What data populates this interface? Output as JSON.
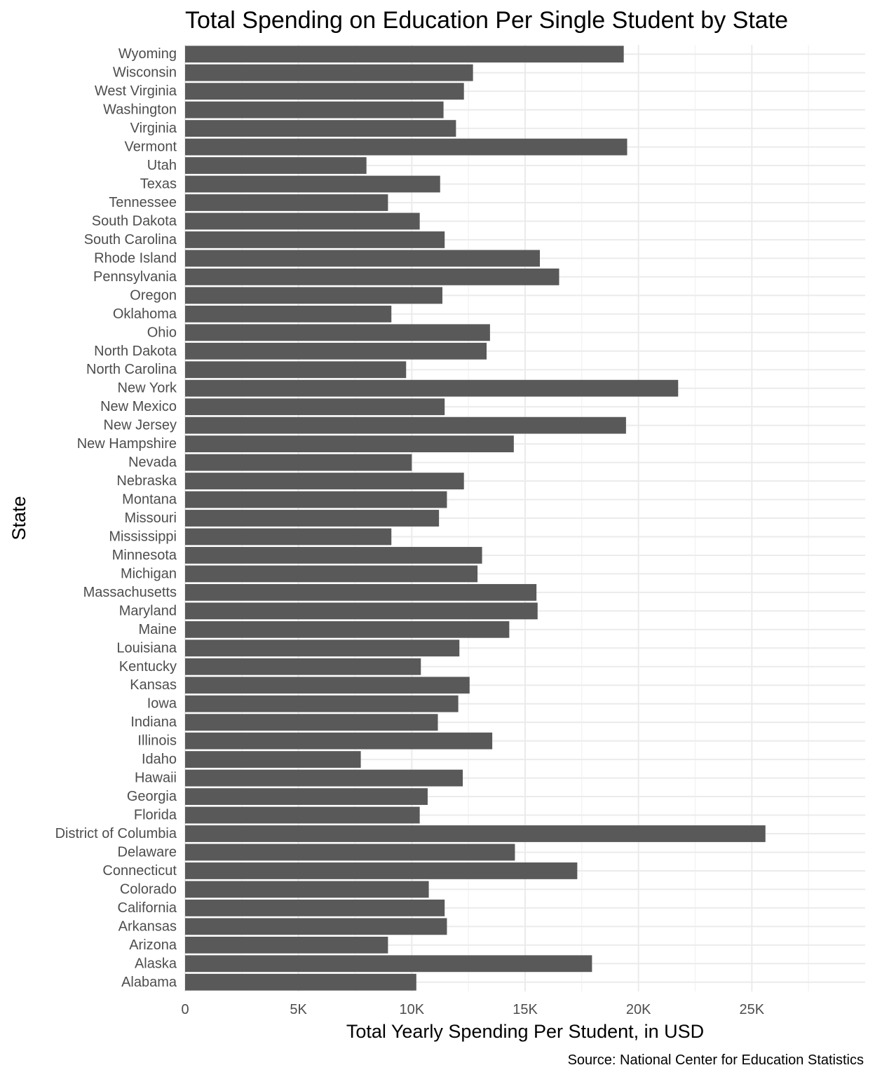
{
  "chart_data": {
    "type": "bar",
    "orientation": "horizontal",
    "title": "Total Spending on Education Per Single Student by State",
    "xlabel": "Total Yearly Spending Per Student, in USD",
    "ylabel": "State",
    "caption": "Source: National Center for Education Statistics",
    "xlim": [
      0,
      30000
    ],
    "xticks": [
      0,
      5000,
      10000,
      15000,
      20000,
      25000
    ],
    "xtick_labels": [
      "0",
      "5K",
      "10K",
      "15K",
      "20K",
      "25K"
    ],
    "grid": true,
    "bar_color": "#595959",
    "categories": [
      "Alabama",
      "Alaska",
      "Arizona",
      "Arkansas",
      "California",
      "Colorado",
      "Connecticut",
      "Delaware",
      "District of Columbia",
      "Florida",
      "Georgia",
      "Hawaii",
      "Idaho",
      "Illinois",
      "Indiana",
      "Iowa",
      "Kansas",
      "Kentucky",
      "Louisiana",
      "Maine",
      "Maryland",
      "Massachusetts",
      "Michigan",
      "Minnesota",
      "Mississippi",
      "Missouri",
      "Montana",
      "Nebraska",
      "Nevada",
      "New Hampshire",
      "New Jersey",
      "New Mexico",
      "New York",
      "North Carolina",
      "North Dakota",
      "Ohio",
      "Oklahoma",
      "Oregon",
      "Pennsylvania",
      "Rhode Island",
      "South Carolina",
      "South Dakota",
      "Tennessee",
      "Texas",
      "Utah",
      "Vermont",
      "Virginia",
      "Washington",
      "West Virginia",
      "Wisconsin",
      "Wyoming"
    ],
    "values": [
      10200,
      17950,
      8950,
      11550,
      11450,
      10750,
      17300,
      14550,
      25600,
      10350,
      10700,
      12250,
      7750,
      13550,
      11150,
      12050,
      12550,
      10400,
      12100,
      14300,
      15550,
      15500,
      12900,
      13100,
      9100,
      11200,
      11550,
      12300,
      10000,
      14500,
      19450,
      11450,
      21750,
      9750,
      13300,
      13450,
      9100,
      11350,
      16500,
      15650,
      11450,
      10350,
      8950,
      11250,
      8000,
      19500,
      11950,
      11400,
      12300,
      12700,
      19350
    ]
  }
}
